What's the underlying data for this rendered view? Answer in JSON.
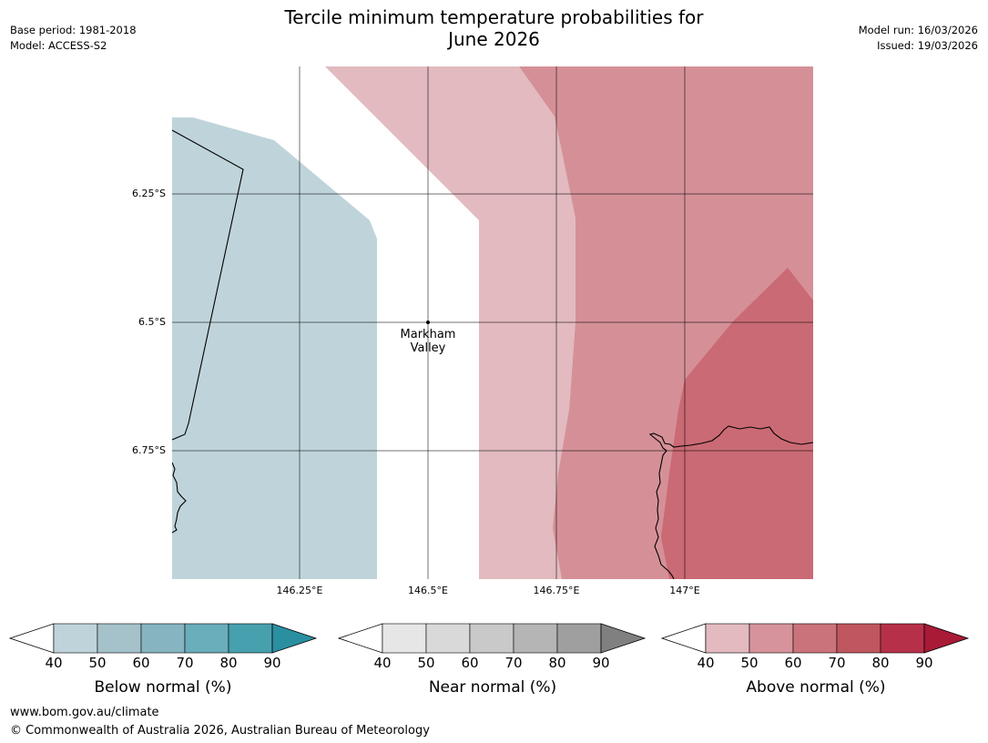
{
  "header": {
    "title_line1": "Tercile minimum temperature probabilities for",
    "title_line2": "June 2026",
    "base_period": "Base period: 1981-2018",
    "model": "Model: ACCESS-S2",
    "model_run": "Model run: 16/03/2026",
    "issued": "Issued: 19/03/2026"
  },
  "map": {
    "lat_labels": [
      "6.25°S",
      "6.5°S",
      "6.75°S"
    ],
    "lon_labels": [
      "146.25°E",
      "146.5°E",
      "146.75°E",
      "147°E"
    ],
    "place": {
      "name_line1": "Markham",
      "name_line2": "Valley"
    },
    "colors": {
      "below_40": "#bfd4da",
      "above_40": "#e2babf",
      "above_50": "#d59097",
      "above_60": "#ca6a74"
    }
  },
  "colorbars": [
    {
      "name": "below",
      "label": "Below normal (%)",
      "ticks": [
        "40",
        "50",
        "60",
        "70",
        "80",
        "90"
      ],
      "colors": [
        "#bfd4da",
        "#a5c2ca",
        "#86b4c1",
        "#6aadbb",
        "#47a0ae",
        "#2a8fa1"
      ]
    },
    {
      "name": "near",
      "label": "Near normal (%)",
      "ticks": [
        "40",
        "50",
        "60",
        "70",
        "80",
        "90"
      ],
      "colors": [
        "#e6e6e6",
        "#d9d9d9",
        "#c9c9c9",
        "#b5b5b5",
        "#9f9f9f",
        "#808080"
      ]
    },
    {
      "name": "above",
      "label": "Above normal (%)",
      "ticks": [
        "40",
        "50",
        "60",
        "70",
        "80",
        "90"
      ],
      "colors": [
        "#e2babf",
        "#d6939b",
        "#cb737b",
        "#c0565f",
        "#b7304a",
        "#a81a36"
      ]
    }
  ],
  "footer": {
    "website": "www.bom.gov.au/climate",
    "copyright": "© Commonwealth of Australia 2026, Australian Bureau of Meteorology"
  }
}
